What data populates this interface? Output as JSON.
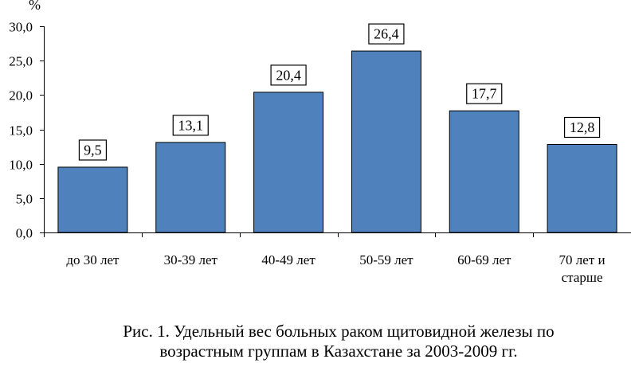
{
  "chart_data": {
    "type": "bar",
    "categories": [
      [
        "до 30 лет"
      ],
      [
        "30-39 лет"
      ],
      [
        "40-49 лет"
      ],
      [
        "50-59 лет"
      ],
      [
        "60-69 лет"
      ],
      [
        "70 лет и",
        "старше"
      ]
    ],
    "values": [
      9.5,
      13.1,
      20.4,
      26.4,
      17.7,
      12.8
    ],
    "value_labels": [
      "9,5",
      "13,1",
      "20,4",
      "26,4",
      "17,7",
      "12,8"
    ],
    "y_unit": "%",
    "ylim": [
      0,
      30
    ],
    "y_ticks": [
      "0,0",
      "5,0",
      "10,0",
      "15,0",
      "20,0",
      "25,0",
      "30,0"
    ],
    "bar_color": "#4f81bd",
    "grid": false,
    "legend": "none"
  },
  "caption": {
    "line1": "Рис. 1. Удельный вес больных раком щитовидной железы по",
    "line2": "возрастным группам в Казахстане за 2003-2009 гг."
  }
}
